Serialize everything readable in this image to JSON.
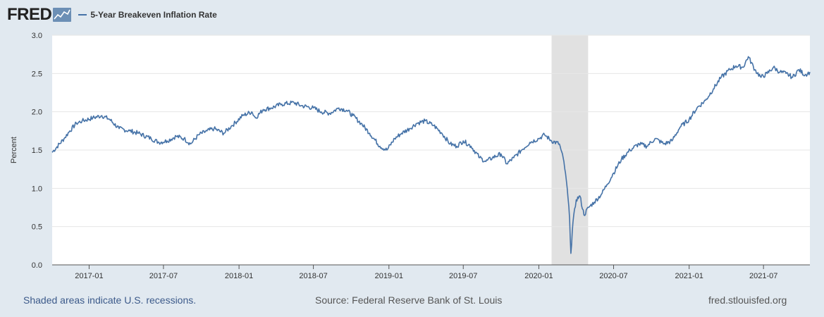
{
  "header": {
    "logo_text": "FRED",
    "legend_label": "5-Year Breakeven Inflation Rate"
  },
  "footer": {
    "recession_note": "Shaded areas indicate U.S. recessions.",
    "source": "Source: Federal Reserve Bank of St. Louis",
    "url": "fred.stlouisfed.org"
  },
  "colors": {
    "line": "#4572a7",
    "recession": "#e1e1e1",
    "plot_bg": "#ffffff",
    "page_bg": "#e1e9f0"
  },
  "chart_data": {
    "type": "line",
    "ylabel": "Percent",
    "ylim": [
      0.0,
      3.0
    ],
    "yticks": [
      "0.0",
      "0.5",
      "1.0",
      "1.5",
      "2.0",
      "2.5",
      "3.0"
    ],
    "xlim": [
      "2016-10-03",
      "2021-10-22"
    ],
    "xticks": [
      "2017-01",
      "2017-07",
      "2018-01",
      "2018-07",
      "2019-01",
      "2019-07",
      "2020-01",
      "2020-07",
      "2021-01",
      "2021-07"
    ],
    "grid": true,
    "recessions": [
      {
        "start": "2020-02-01",
        "end": "2020-04-30"
      }
    ],
    "series": [
      {
        "name": "5-Year Breakeven Inflation Rate",
        "x": [
          "2016-10-03",
          "2016-11-01",
          "2016-11-15",
          "2016-12-01",
          "2016-12-15",
          "2017-01-10",
          "2017-02-01",
          "2017-02-20",
          "2017-03-15",
          "2017-04-10",
          "2017-05-01",
          "2017-06-01",
          "2017-06-20",
          "2017-07-10",
          "2017-08-01",
          "2017-08-20",
          "2017-09-05",
          "2017-09-25",
          "2017-10-15",
          "2017-11-01",
          "2017-11-25",
          "2017-12-15",
          "2018-01-10",
          "2018-02-01",
          "2018-02-10",
          "2018-03-01",
          "2018-03-20",
          "2018-04-15",
          "2018-05-15",
          "2018-06-01",
          "2018-07-01",
          "2018-07-20",
          "2018-08-10",
          "2018-09-01",
          "2018-09-20",
          "2018-10-05",
          "2018-10-25",
          "2018-11-15",
          "2018-12-10",
          "2018-12-27",
          "2019-01-15",
          "2019-02-01",
          "2019-02-20",
          "2019-03-10",
          "2019-03-30",
          "2019-04-20",
          "2019-05-10",
          "2019-05-30",
          "2019-06-15",
          "2019-07-01",
          "2019-07-20",
          "2019-08-10",
          "2019-08-25",
          "2019-09-10",
          "2019-10-01",
          "2019-10-15",
          "2019-11-01",
          "2019-11-20",
          "2019-12-10",
          "2020-01-01",
          "2020-01-15",
          "2020-02-01",
          "2020-02-20",
          "2020-03-02",
          "2020-03-10",
          "2020-03-16",
          "2020-03-19",
          "2020-03-24",
          "2020-04-01",
          "2020-04-10",
          "2020-04-20",
          "2020-05-01",
          "2020-05-15",
          "2020-06-01",
          "2020-06-15",
          "2020-07-01",
          "2020-07-20",
          "2020-08-10",
          "2020-09-01",
          "2020-09-20",
          "2020-10-10",
          "2020-11-01",
          "2020-11-20",
          "2020-12-10",
          "2021-01-01",
          "2021-01-20",
          "2021-02-10",
          "2021-03-01",
          "2021-03-20",
          "2021-04-10",
          "2021-04-25",
          "2021-05-12",
          "2021-05-25",
          "2021-06-10",
          "2021-06-25",
          "2021-07-10",
          "2021-07-25",
          "2021-08-10",
          "2021-08-25",
          "2021-09-10",
          "2021-09-25",
          "2021-10-10",
          "2021-10-22"
        ],
        "y": [
          1.47,
          1.65,
          1.75,
          1.85,
          1.88,
          1.92,
          1.95,
          1.9,
          1.78,
          1.75,
          1.72,
          1.65,
          1.6,
          1.62,
          1.68,
          1.65,
          1.58,
          1.7,
          1.75,
          1.78,
          1.72,
          1.82,
          1.95,
          2.0,
          1.92,
          2.03,
          2.05,
          2.1,
          2.12,
          2.08,
          2.05,
          2.0,
          1.98,
          2.05,
          2.02,
          1.95,
          1.85,
          1.72,
          1.55,
          1.5,
          1.65,
          1.72,
          1.78,
          1.85,
          1.88,
          1.82,
          1.72,
          1.58,
          1.55,
          1.62,
          1.55,
          1.4,
          1.35,
          1.4,
          1.45,
          1.32,
          1.4,
          1.5,
          1.6,
          1.65,
          1.7,
          1.62,
          1.58,
          1.35,
          1.0,
          0.6,
          0.15,
          0.55,
          0.85,
          0.9,
          0.65,
          0.75,
          0.82,
          0.92,
          1.05,
          1.2,
          1.38,
          1.5,
          1.58,
          1.55,
          1.65,
          1.58,
          1.62,
          1.8,
          1.9,
          2.05,
          2.15,
          2.3,
          2.45,
          2.55,
          2.6,
          2.58,
          2.72,
          2.55,
          2.45,
          2.5,
          2.58,
          2.52,
          2.5,
          2.45,
          2.55,
          2.48,
          2.52
        ]
      }
    ]
  }
}
